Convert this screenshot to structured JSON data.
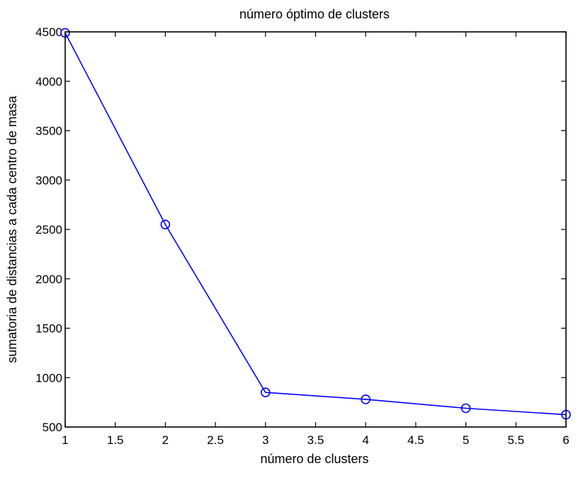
{
  "chart_data": {
    "type": "line",
    "title": "número óptimo de clusters",
    "xlabel": "número de clusters",
    "ylabel": "sumatoria de distancias a cada centro de masa",
    "xlim": [
      1,
      6
    ],
    "ylim": [
      500,
      4500
    ],
    "xticks": [
      1,
      1.5,
      2,
      2.5,
      3,
      3.5,
      4,
      4.5,
      5,
      5.5,
      6
    ],
    "xtick_labels": [
      "1",
      "1.5",
      "2",
      "2.5",
      "3",
      "3.5",
      "4",
      "4.5",
      "5",
      "5.5",
      "6"
    ],
    "yticks": [
      500,
      1000,
      1500,
      2000,
      2500,
      3000,
      3500,
      4000,
      4500
    ],
    "ytick_labels": [
      "500",
      "1000",
      "1500",
      "2000",
      "2500",
      "3000",
      "3500",
      "4000",
      "4500"
    ],
    "grid": false,
    "marker": "circle",
    "series_color": "#0000ff",
    "series": [
      {
        "x": [
          1,
          2,
          3,
          4,
          5,
          6
        ],
        "values": [
          4490,
          2550,
          850,
          780,
          690,
          625
        ]
      }
    ]
  }
}
